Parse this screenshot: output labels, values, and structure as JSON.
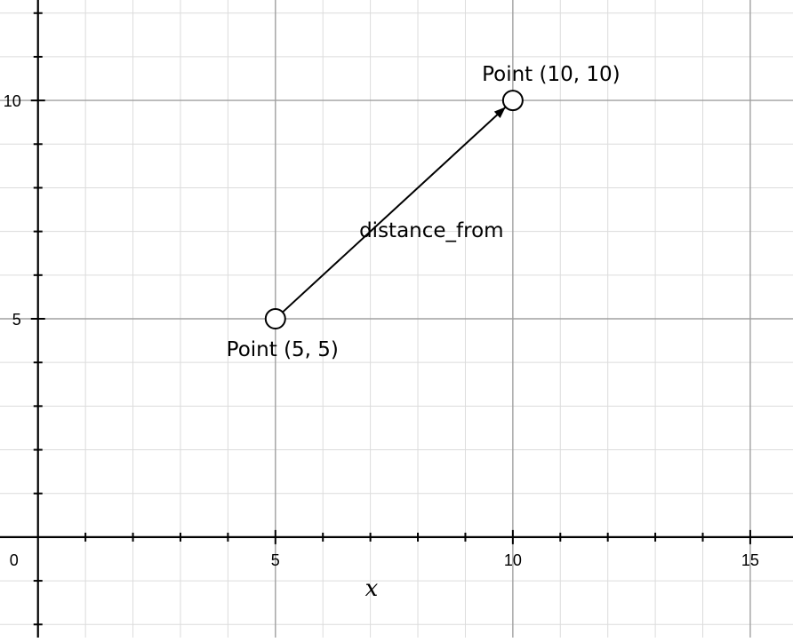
{
  "chart_data": {
    "type": "scatter",
    "xlabel": "x",
    "ylabel": "",
    "xlim": [
      -0.8,
      15.9
    ],
    "ylim": [
      -2.3,
      12.3
    ],
    "grid": true,
    "x_ticks": [
      {
        "value": 0,
        "label": "0"
      },
      {
        "value": 5,
        "label": "5"
      },
      {
        "value": 10,
        "label": "10"
      },
      {
        "value": 15,
        "label": "15"
      }
    ],
    "y_ticks": [
      {
        "value": 5,
        "label": "5"
      },
      {
        "value": 10,
        "label": "10"
      }
    ],
    "points": [
      {
        "x": 5,
        "y": 5,
        "label": "Point (5, 5)"
      },
      {
        "x": 10,
        "y": 10,
        "label": "Point (10, 10)"
      }
    ],
    "vectors": [
      {
        "from": [
          5,
          5
        ],
        "to": [
          10,
          10
        ],
        "label": "distance_from"
      }
    ]
  }
}
